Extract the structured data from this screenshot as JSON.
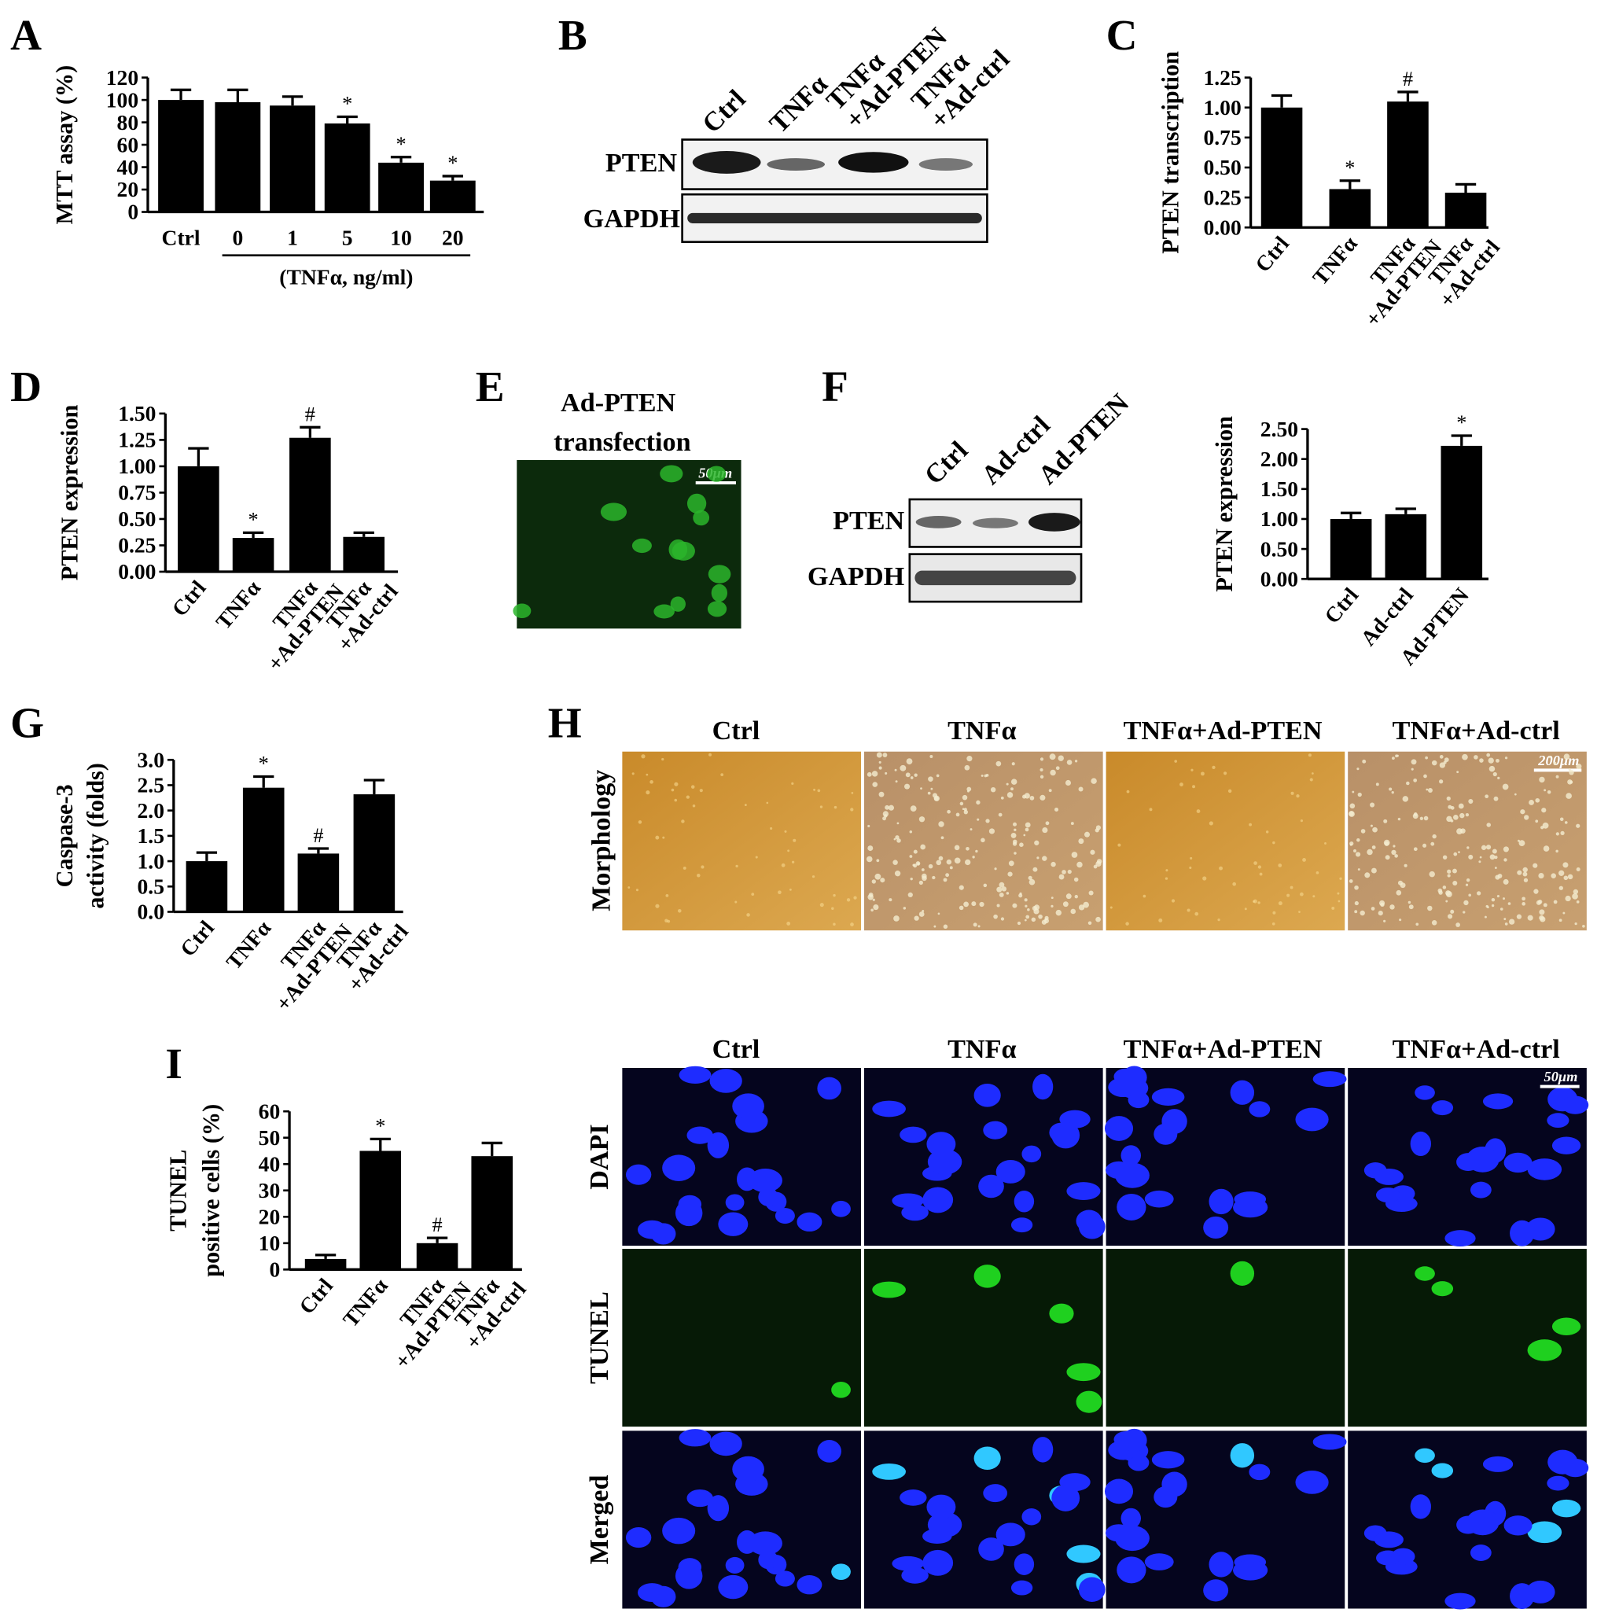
{
  "panels": [
    "A",
    "B",
    "C",
    "D",
    "E",
    "F",
    "G",
    "H",
    "I"
  ],
  "blot_b": {
    "lanes": [
      [
        "Ctrl"
      ],
      [
        "TNFα"
      ],
      [
        "TNFα",
        "+Ad-PTEN"
      ],
      [
        "TNFα",
        "+Ad-ctrl"
      ]
    ],
    "rows": [
      "PTEN",
      "GAPDH"
    ]
  },
  "panel_e": {
    "title": [
      "Ad-PTEN",
      "transfection"
    ],
    "scale": "50μm"
  },
  "blot_f": {
    "lanes": [
      "Ctrl",
      "Ad-ctrl",
      "Ad-PTEN"
    ],
    "rows": [
      "PTEN",
      "GAPDH"
    ]
  },
  "panel_h": {
    "columns": [
      "Ctrl",
      "TNFα",
      "TNFα+Ad-PTEN",
      "TNFα+Ad-ctrl"
    ],
    "row": "Morphology",
    "scale": "200μm"
  },
  "panel_i_images": {
    "columns": [
      "Ctrl",
      "TNFα",
      "TNFα+Ad-PTEN",
      "TNFα+Ad-ctrl"
    ],
    "rows": [
      "DAPI",
      "TUNEL",
      "Merged"
    ],
    "scale": "50μm"
  },
  "chart_data": [
    {
      "type": "bar",
      "y_label": "MTT assay (%)",
      "x_label": "(TNFα, ng/ml)",
      "categories": [
        [
          "Ctrl"
        ],
        [
          "0"
        ],
        [
          "1"
        ],
        [
          "5"
        ],
        [
          "10"
        ],
        [
          "20"
        ]
      ],
      "values": [
        100,
        98,
        95,
        79,
        44,
        28
      ],
      "errors": [
        9,
        11,
        8,
        6,
        5,
        4
      ],
      "markers": [
        null,
        null,
        null,
        "*",
        "*",
        "*"
      ],
      "color": "#000000",
      "ylim": [
        0,
        120
      ],
      "yticks": [
        0,
        20,
        40,
        60,
        80,
        100,
        120
      ]
    },
    {
      "type": "bar",
      "y_label": "PTEN transcription",
      "categories": [
        [
          "Ctrl"
        ],
        [
          "TNFα"
        ],
        [
          "TNFα",
          "+Ad-PTEN"
        ],
        [
          "TNFα",
          "+Ad-ctrl"
        ]
      ],
      "values": [
        1.0,
        0.32,
        1.05,
        0.29
      ],
      "errors": [
        0.1,
        0.07,
        0.08,
        0.07
      ],
      "markers": [
        null,
        "*",
        "#",
        null
      ],
      "color": "#000000",
      "ylim": [
        0,
        1.25
      ],
      "yticks": [
        {
          "value": 0,
          "label": "0.00"
        },
        {
          "value": 0.25,
          "label": "0.25"
        },
        {
          "value": 0.5,
          "label": "0.50"
        },
        {
          "value": 0.75,
          "label": "0.75"
        },
        {
          "value": 1,
          "label": "1.00"
        },
        {
          "value": 1.25,
          "label": "1.25"
        }
      ]
    },
    {
      "type": "bar",
      "y_label": "PTEN expression",
      "categories": [
        [
          "Ctrl"
        ],
        [
          "TNFα"
        ],
        [
          "TNFα",
          "+Ad-PTEN"
        ],
        [
          "TNFα",
          "+Ad-ctrl"
        ]
      ],
      "values": [
        1.0,
        0.32,
        1.27,
        0.33
      ],
      "errors": [
        0.17,
        0.05,
        0.1,
        0.04
      ],
      "markers": [
        null,
        "*",
        "#",
        null
      ],
      "color": "#000000",
      "ylim": [
        0,
        1.5
      ],
      "yticks": [
        {
          "value": 0,
          "label": "0.00"
        },
        {
          "value": 0.25,
          "label": "0.25"
        },
        {
          "value": 0.5,
          "label": "0.50"
        },
        {
          "value": 0.75,
          "label": "0.75"
        },
        {
          "value": 1,
          "label": "1.00"
        },
        {
          "value": 1.25,
          "label": "1.25"
        },
        {
          "value": 1.5,
          "label": "1.50"
        }
      ]
    },
    {
      "type": "bar",
      "y_label": "PTEN expression",
      "categories": [
        [
          "Ctrl"
        ],
        [
          "Ad-ctrl"
        ],
        [
          "Ad-PTEN"
        ]
      ],
      "values": [
        1.0,
        1.08,
        2.22
      ],
      "errors": [
        0.1,
        0.09,
        0.17
      ],
      "markers": [
        null,
        null,
        "*"
      ],
      "color": "#000000",
      "ylim": [
        0,
        2.5
      ],
      "yticks": [
        {
          "value": 0,
          "label": "0.00"
        },
        {
          "value": 0.5,
          "label": "0.50"
        },
        {
          "value": 1,
          "label": "1.00"
        },
        {
          "value": 1.5,
          "label": "1.50"
        },
        {
          "value": 2,
          "label": "2.00"
        },
        {
          "value": 2.5,
          "label": "2.50"
        }
      ]
    },
    {
      "type": "bar",
      "y_label": [
        "Caspase-3",
        "activity (folds)"
      ],
      "categories": [
        [
          "Ctrl"
        ],
        [
          "TNFα"
        ],
        [
          "TNFα",
          "+Ad-PTEN"
        ],
        [
          "TNFα",
          "+Ad-ctrl"
        ]
      ],
      "values": [
        1.0,
        2.45,
        1.15,
        2.32
      ],
      "errors": [
        0.17,
        0.22,
        0.1,
        0.28
      ],
      "markers": [
        null,
        "*",
        "#",
        null
      ],
      "color": "#000000",
      "ylim": [
        0,
        3
      ],
      "yticks": [
        {
          "value": 0,
          "label": "0.0"
        },
        {
          "value": 0.5,
          "label": "0.5"
        },
        {
          "value": 1,
          "label": "1.0"
        },
        {
          "value": 1.5,
          "label": "1.5"
        },
        {
          "value": 2,
          "label": "2.0"
        },
        {
          "value": 2.5,
          "label": "2.5"
        },
        {
          "value": 3,
          "label": "3.0"
        }
      ]
    },
    {
      "type": "bar",
      "y_label": [
        "TUNEL",
        "positive cells (%)"
      ],
      "categories": [
        [
          "Ctrl"
        ],
        [
          "TNFα"
        ],
        [
          "TNFα",
          "+Ad-PTEN"
        ],
        [
          "TNFα",
          "+Ad-ctrl"
        ]
      ],
      "values": [
        4,
        45,
        10,
        43
      ],
      "errors": [
        1.5,
        4.5,
        2,
        5
      ],
      "markers": [
        null,
        "*",
        "#",
        null
      ],
      "color": "#000000",
      "ylim": [
        0,
        60
      ],
      "yticks": [
        0,
        10,
        20,
        30,
        40,
        50,
        60
      ]
    }
  ]
}
